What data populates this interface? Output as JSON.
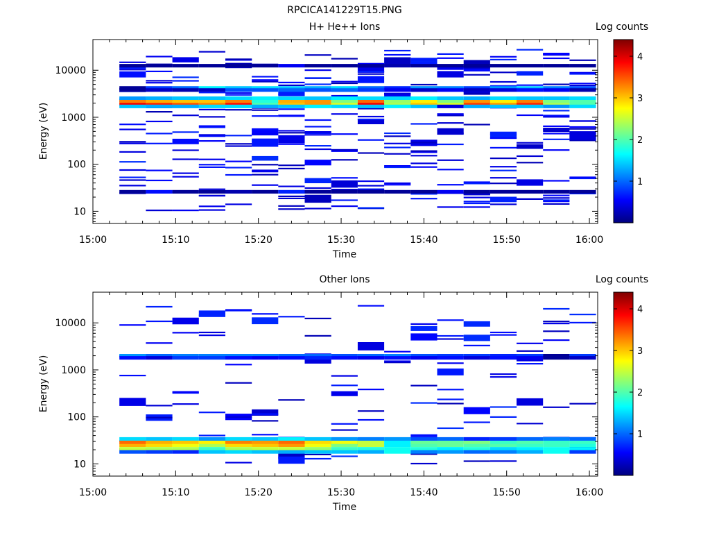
{
  "figure_title": "RPCICA141229T15.PNG",
  "chart_data": [
    {
      "type": "heatmap",
      "title": "H+ He++ Ions",
      "xlabel": "Time",
      "ylabel": "Energy (eV)",
      "x_ticks": [
        "15:00",
        "15:10",
        "15:20",
        "15:30",
        "15:40",
        "15:50",
        "16:00"
      ],
      "x_range_minutes": [
        0,
        61
      ],
      "y_scale": "log",
      "y_ticks": [
        10,
        100,
        1000,
        10000
      ],
      "y_tick_labels": [
        "10",
        "100",
        "1000",
        "10000"
      ],
      "ylim": [
        5.5,
        45000
      ],
      "colorbar": {
        "label": "Log counts",
        "range": [
          0,
          4.4
        ],
        "ticks": [
          1,
          2,
          3,
          4
        ],
        "tick_labels": [
          "1",
          "2",
          "3",
          "4"
        ],
        "colormap": "jet"
      },
      "grid": false,
      "time_bins_minutes": [
        3.2,
        6.4,
        9.6,
        12.8,
        16.0,
        19.2,
        22.4,
        25.6,
        28.8,
        32.0,
        35.2,
        38.4,
        41.6,
        44.8,
        48.0,
        51.2,
        54.4,
        57.6,
        60.8
      ],
      "bands": [
        {
          "e": 1900,
          "v": [
            3.9,
            3.7,
            3.5,
            3.3,
            3.8,
            2.0,
            3.0,
            3.2,
            2.6,
            3.9,
            2.4,
            3.0,
            2.6,
            3.6,
            3.2,
            3.7,
            2.4,
            2.0
          ]
        },
        {
          "e": 2200,
          "v": [
            3.3,
            3.1,
            3.0,
            3.0,
            3.3,
            1.8,
            3.1,
            3.2,
            2.2,
            3.4,
            2.3,
            2.8,
            2.2,
            3.2,
            2.8,
            3.3,
            2.2,
            2.0
          ]
        },
        {
          "e": 1700,
          "v": [
            1.4,
            1.3,
            1.3,
            1.5,
            1.5,
            1.3,
            1.4,
            1.6,
            1.5,
            1.4,
            1.6,
            1.4,
            0.4,
            1.3,
            1.4,
            1.4,
            1.2,
            1.5
          ]
        },
        {
          "e": 2550,
          "v": [
            1.2,
            1.3,
            1.4,
            1.4,
            1.5,
            1.6,
            1.5,
            1.4,
            1.6,
            1.5,
            1.5,
            1.6,
            1.4,
            1.3,
            1.5,
            1.4,
            1.4,
            1.5
          ]
        },
        {
          "e": 4200,
          "v": [
            0.1,
            0.8,
            1.0,
            1.6,
            1.4,
            1.5,
            1.4,
            1.3,
            1.5,
            1.0,
            0.7,
            1.2,
            1.1,
            0.8,
            1.2,
            1.4,
            1.1,
            0.9
          ]
        },
        {
          "e": 3800,
          "v": [
            0.1,
            0.3,
            0.2,
            0.3,
            0.9,
            0.9,
            1.0,
            0.9,
            1.0,
            0.8,
            0.5,
            0.3,
            0.5,
            0.3,
            0.4,
            0.6,
            0.5,
            0.2
          ]
        },
        {
          "e": 12500,
          "v": [
            0.1,
            0.1,
            0.1,
            0.1,
            0.1,
            0.1,
            0.5,
            0.1,
            0.1,
            0.1,
            0.2,
            0.1,
            0.1,
            0.1,
            0.1,
            0.1,
            0.1,
            0.1
          ]
        },
        {
          "e": 26,
          "v": [
            0.1,
            0.6,
            0.1,
            0.1,
            0.2,
            0.1,
            0.7,
            0.1,
            0.1,
            0.1,
            0.1,
            0.1,
            0.5,
            0.1,
            0.1,
            0.1,
            0.1,
            0.1
          ]
        }
      ],
      "sparse_counts": "scattered low-count (~0.1-0.4 log counts) single-bin energy traces across 10-30000 eV in every time bin"
    },
    {
      "type": "heatmap",
      "title": "Other Ions",
      "xlabel": "Time",
      "ylabel": "Energy (eV)",
      "x_ticks": [
        "15:00",
        "15:10",
        "15:20",
        "15:30",
        "15:40",
        "15:50",
        "16:00"
      ],
      "x_range_minutes": [
        0,
        61
      ],
      "y_scale": "log",
      "y_ticks": [
        10,
        100,
        1000,
        10000
      ],
      "y_tick_labels": [
        "10",
        "100",
        "1000",
        "10000"
      ],
      "ylim": [
        5.5,
        45000
      ],
      "colorbar": {
        "label": "Log counts",
        "range": [
          0,
          4.4
        ],
        "ticks": [
          1,
          2,
          3,
          4
        ],
        "tick_labels": [
          "1",
          "2",
          "3",
          "4"
        ],
        "colormap": "jet"
      },
      "grid": false,
      "time_bins_minutes": [
        3.2,
        6.4,
        9.6,
        12.8,
        16.0,
        19.2,
        22.4,
        25.6,
        28.8,
        32.0,
        35.2,
        38.4,
        41.6,
        44.8,
        48.0,
        51.2,
        54.4,
        57.6,
        60.8
      ],
      "bands": [
        {
          "e": 25,
          "v": [
            3.1,
            2.9,
            2.7,
            2.4,
            2.9,
            3.0,
            3.2,
            2.7,
            2.2,
            2.5,
            1.6,
            2.0,
            2.1,
            2.0,
            2.0,
            1.9,
            1.9,
            1.8
          ]
        },
        {
          "e": 29,
          "v": [
            3.4,
            3.1,
            3.0,
            2.8,
            3.3,
            3.2,
            3.4,
            2.9,
            2.7,
            2.5,
            1.6,
            2.1,
            2.1,
            2.2,
            1.9,
            2.0,
            1.9,
            1.9
          ]
        },
        {
          "e": 21,
          "v": [
            2.5,
            2.4,
            2.4,
            1.9,
            2.4,
            2.5,
            2.5,
            2.3,
            1.9,
            1.8,
            1.7,
            1.8,
            1.6,
            1.8,
            1.5,
            1.6,
            1.7,
            1.6
          ]
        },
        {
          "e": 34,
          "v": [
            1.5,
            1.4,
            1.5,
            1.2,
            1.5,
            1.4,
            1.6,
            1.4,
            1.2,
            1.1,
            1.2,
            0.9,
            1.0,
            0.7,
            0.8,
            1.0,
            1.1,
            1.0
          ]
        },
        {
          "e": 18,
          "v": [
            0.9,
            0.8,
            0.7,
            1.4,
            1.5,
            1.4,
            1.3,
            1.4,
            1.4,
            1.3,
            1.7,
            1.1,
            1.2,
            1.0,
            1.1,
            1.3,
            1.7,
            0.8
          ]
        },
        {
          "e": 2000,
          "v": [
            1.2,
            1.0,
            1.1,
            1.1,
            1.1,
            1.1,
            1.0,
            1.0,
            0.9,
            1.0,
            1.1,
            0.9,
            0.8,
            0.8,
            0.7,
            0.8,
            0.1,
            0.8
          ]
        },
        {
          "e": 1800,
          "v": [
            0.6,
            0.4,
            0.8,
            0.8,
            0.6,
            0.5,
            0.6,
            0.7,
            0.6,
            0.5,
            0.6,
            0.5,
            0.6,
            0.4,
            0.6,
            0.5,
            0.1,
            0.3
          ]
        }
      ],
      "sparse_counts": "scattered low-count (~0.1-0.4 log counts) single-bin energy traces across 10-30000 eV in every time bin"
    }
  ]
}
